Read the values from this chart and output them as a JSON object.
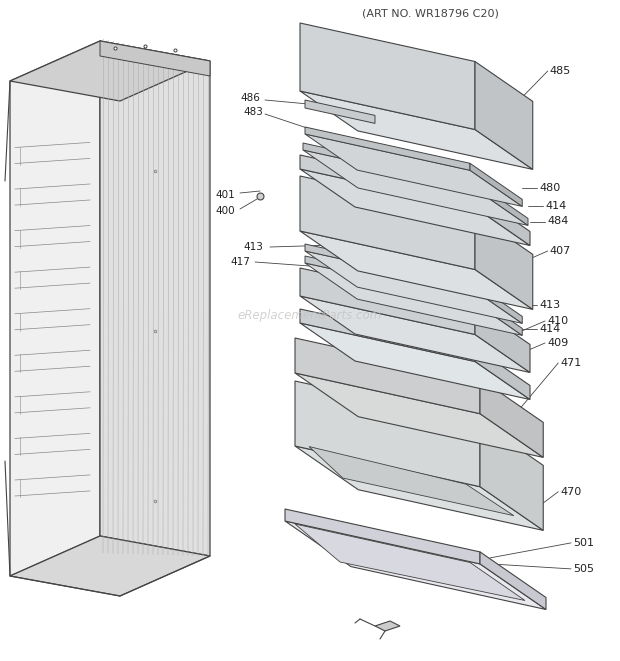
{
  "bg_color": "#ffffff",
  "line_color": "#444444",
  "label_color": "#222222",
  "footer": "(ART NO. WR18796 C20)",
  "watermark": "eReplacementParts.com",
  "fig_w": 6.2,
  "fig_h": 6.61,
  "dpi": 100
}
